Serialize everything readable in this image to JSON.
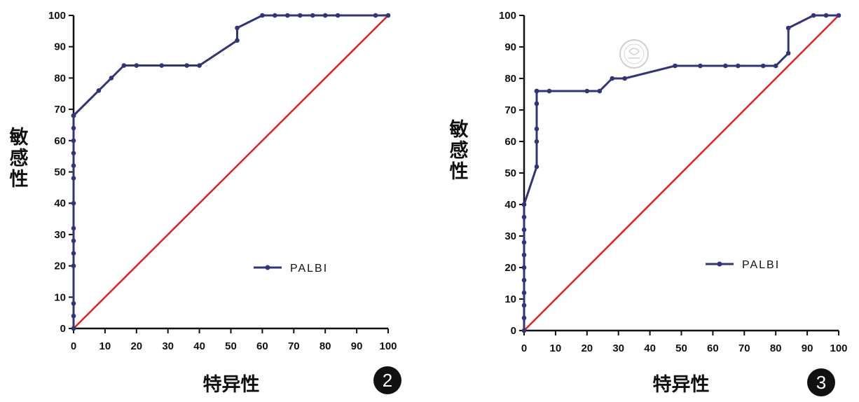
{
  "chart_data": [
    {
      "type": "line",
      "badge": "2",
      "xlabel": "特异性",
      "ylabel": "敏感性",
      "xlim": [
        0,
        100
      ],
      "ylim": [
        0,
        100
      ],
      "xticks": [
        0,
        10,
        20,
        30,
        40,
        50,
        60,
        70,
        80,
        90,
        100
      ],
      "yticks": [
        0,
        10,
        20,
        30,
        40,
        50,
        60,
        70,
        80,
        90,
        100
      ],
      "legend_position": "lower-right",
      "reference_line": {
        "from": [
          0,
          0
        ],
        "to": [
          100,
          100
        ],
        "color": "#e02020"
      },
      "series": [
        {
          "name": "PALBI",
          "color": "#33337a",
          "x": [
            0,
            0,
            0,
            0,
            0,
            0,
            0,
            0,
            0,
            0,
            0,
            0,
            0,
            0,
            0,
            0,
            8,
            12,
            16,
            20,
            28,
            36,
            40,
            52,
            52,
            60,
            64,
            68,
            72,
            76,
            80,
            84,
            96,
            100
          ],
          "y": [
            0,
            4,
            8,
            20,
            24,
            28,
            32,
            40,
            48,
            52,
            56,
            60,
            64,
            68,
            68,
            68,
            76,
            80,
            84,
            84,
            84,
            84,
            84,
            92,
            96,
            100,
            100,
            100,
            100,
            100,
            100,
            100,
            100,
            100
          ]
        }
      ]
    },
    {
      "type": "line",
      "badge": "3",
      "xlabel": "特异性",
      "ylabel": "敏感性",
      "xlim": [
        0,
        100
      ],
      "ylim": [
        0,
        100
      ],
      "xticks": [
        0,
        10,
        20,
        30,
        40,
        50,
        60,
        70,
        80,
        90,
        100
      ],
      "yticks": [
        0,
        10,
        20,
        30,
        40,
        50,
        60,
        70,
        80,
        90,
        100
      ],
      "legend_position": "lower-right",
      "reference_line": {
        "from": [
          0,
          0
        ],
        "to": [
          100,
          100
        ],
        "color": "#e02020"
      },
      "series": [
        {
          "name": "PALBI",
          "color": "#33337a",
          "x": [
            0,
            0,
            0,
            0,
            0,
            0,
            0,
            0,
            0,
            0,
            0,
            4,
            4,
            4,
            4,
            4,
            4,
            8,
            20,
            24,
            28,
            32,
            48,
            56,
            64,
            68,
            76,
            80,
            84,
            84,
            92,
            96,
            100
          ],
          "y": [
            0,
            4,
            8,
            12,
            16,
            20,
            24,
            28,
            32,
            36,
            40,
            52,
            60,
            64,
            72,
            76,
            76,
            76,
            76,
            76,
            80,
            80,
            84,
            84,
            84,
            84,
            84,
            84,
            88,
            96,
            100,
            100,
            100
          ]
        }
      ]
    }
  ]
}
